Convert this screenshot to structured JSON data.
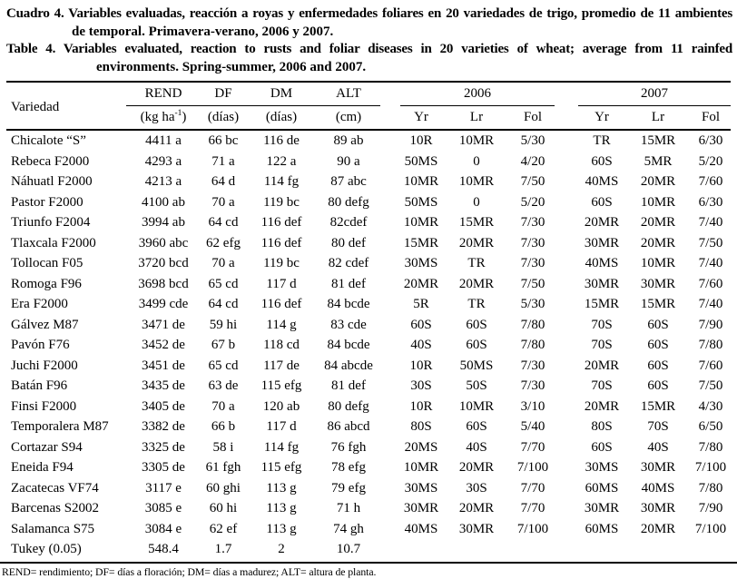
{
  "titles": {
    "es": {
      "line1": "Cuadro 4. Variables evaluadas, reacción a royas y enfermedades foliares en 20 variedades de trigo, promedio de 11 ambientes",
      "line2": "de temporal. Primavera-verano, 2006 y 2007."
    },
    "en": {
      "line1": "Table 4. Variables evaluated, reaction to rusts and foliar diseases in 20 varieties of wheat; average from 11 rainfed",
      "line2": "environments. Spring-summer, 2006 and 2007."
    }
  },
  "table": {
    "head": {
      "variety": "Variedad",
      "rend": "REND",
      "df": "DF",
      "dm": "DM",
      "alt": "ALT",
      "y2006": "2006",
      "y2007": "2007",
      "yr": "Yr",
      "lr": "Lr",
      "fol": "Fol"
    },
    "units": {
      "rend_pre": "(kg ha",
      "rend_sup": "-1",
      "rend_post": ")",
      "days": "(días)",
      "cm": "(cm)"
    },
    "rows": [
      [
        "Chicalote “S”",
        "4411 a",
        "66 bc",
        "116 de",
        "89 ab",
        "10R",
        "10MR",
        "5/30",
        "TR",
        "15MR",
        "6/30"
      ],
      [
        "Rebeca F2000",
        "4293 a",
        "71 a",
        "122 a",
        "90 a",
        "50MS",
        "0",
        "4/20",
        "60S",
        "5MR",
        "5/20"
      ],
      [
        "Náhuatl F2000",
        "4213 a",
        "64 d",
        "114 fg",
        "87 abc",
        "10MR",
        "10MR",
        "7/50",
        "40MS",
        "20MR",
        "7/60"
      ],
      [
        "Pastor F2000",
        "4100 ab",
        "70 a",
        "119 bc",
        "80 defg",
        "50MS",
        "0",
        "5/20",
        "60S",
        "10MR",
        "6/30"
      ],
      [
        "Triunfo F2004",
        "3994 ab",
        "64 cd",
        "116 def",
        "82cdef",
        "10MR",
        "15MR",
        "7/30",
        "20MR",
        "20MR",
        "7/40"
      ],
      [
        "Tlaxcala F2000",
        "3960 abc",
        "62 efg",
        "116 def",
        "80 def",
        "15MR",
        "20MR",
        "7/30",
        "30MR",
        "20MR",
        "7/50"
      ],
      [
        "Tollocan F05",
        "3720 bcd",
        "70 a",
        "119 bc",
        "82 cdef",
        "30MS",
        "TR",
        "7/30",
        "40MS",
        "10MR",
        "7/40"
      ],
      [
        "Romoga F96",
        "3698 bcd",
        "65 cd",
        "117 d",
        "81 def",
        "20MR",
        "20MR",
        "7/50",
        "30MR",
        "30MR",
        "7/60"
      ],
      [
        "Era F2000",
        "3499 cde",
        "64 cd",
        "116 def",
        "84 bcde",
        "5R",
        "TR",
        "5/30",
        "15MR",
        "15MR",
        "7/40"
      ],
      [
        "Gálvez M87",
        "3471 de",
        "59 hi",
        "114 g",
        "83 cde",
        "60S",
        "60S",
        "7/80",
        "70S",
        "60S",
        "7/90"
      ],
      [
        "Pavón F76",
        "3452 de",
        "67 b",
        "118 cd",
        "84 bcde",
        "40S",
        "60S",
        "7/80",
        "70S",
        "60S",
        "7/80"
      ],
      [
        "Juchi F2000",
        "3451 de",
        "65 cd",
        "117 de",
        "84 abcde",
        "10R",
        "50MS",
        "7/30",
        "20MR",
        "60S",
        "7/60"
      ],
      [
        "Batán F96",
        "3435 de",
        "63 de",
        "115 efg",
        "81 def",
        "30S",
        "50S",
        "7/30",
        "70S",
        "60S",
        "7/50"
      ],
      [
        "Finsi F2000",
        "3405 de",
        "70 a",
        "120 ab",
        "80 defg",
        "10R",
        "10MR",
        "3/10",
        "20MR",
        "15MR",
        "4/30"
      ],
      [
        "Temporalera M87",
        "3382 de",
        "66 b",
        "117 d",
        "86 abcd",
        "80S",
        "60S",
        "5/40",
        "80S",
        "70S",
        "6/50"
      ],
      [
        "Cortazar S94",
        "3325 de",
        "58 i",
        "114 fg",
        "76 fgh",
        "20MS",
        "40S",
        "7/70",
        "60S",
        "40S",
        "7/80"
      ],
      [
        "Eneida F94",
        "3305 de",
        "61 fgh",
        "115 efg",
        "78 efg",
        "10MR",
        "20MR",
        "7/100",
        "30MS",
        "30MR",
        "7/100"
      ],
      [
        "Zacatecas VF74",
        "3117 e",
        "60 ghi",
        "113 g",
        "79 efg",
        "30MS",
        "30S",
        "7/70",
        "60MS",
        "40MS",
        "7/80"
      ],
      [
        "Barcenas S2002",
        "3085 e",
        "60 hi",
        "113 g",
        "71 h",
        "30MR",
        "20MR",
        "7/70",
        "30MR",
        "30MR",
        "7/90"
      ],
      [
        "Salamanca S75",
        "3084 e",
        "62 ef",
        "113 g",
        "74 gh",
        "40MS",
        "30MR",
        "7/100",
        "60MS",
        "20MR",
        "7/100"
      ],
      [
        "Tukey (0.05)",
        "548.4",
        "1.7",
        "2",
        "10.7",
        "",
        "",
        "",
        "",
        "",
        ""
      ]
    ]
  },
  "footnote": "REND= rendimiento; DF= días a floración; DM= días a madurez; ALT= altura de planta."
}
